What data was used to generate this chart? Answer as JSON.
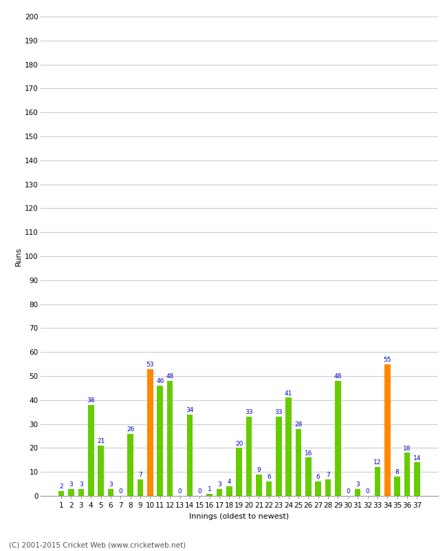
{
  "innings": [
    1,
    2,
    3,
    4,
    5,
    6,
    7,
    8,
    9,
    10,
    11,
    12,
    13,
    14,
    15,
    16,
    17,
    18,
    19,
    20,
    21,
    22,
    23,
    24,
    25,
    26,
    27,
    28,
    29,
    30,
    31,
    32,
    33,
    34,
    35,
    36,
    37
  ],
  "values": [
    2,
    3,
    3,
    38,
    21,
    3,
    0,
    26,
    7,
    53,
    46,
    48,
    0,
    34,
    0,
    1,
    3,
    4,
    20,
    33,
    9,
    6,
    33,
    41,
    28,
    16,
    6,
    7,
    48,
    0,
    3,
    0,
    12,
    55,
    8,
    18,
    14
  ],
  "colors": [
    "#66cc00",
    "#66cc00",
    "#66cc00",
    "#66cc00",
    "#66cc00",
    "#66cc00",
    "#66cc00",
    "#66cc00",
    "#66cc00",
    "#ff8800",
    "#66cc00",
    "#66cc00",
    "#66cc00",
    "#66cc00",
    "#66cc00",
    "#66cc00",
    "#66cc00",
    "#66cc00",
    "#66cc00",
    "#66cc00",
    "#66cc00",
    "#66cc00",
    "#66cc00",
    "#66cc00",
    "#66cc00",
    "#66cc00",
    "#66cc00",
    "#66cc00",
    "#66cc00",
    "#66cc00",
    "#66cc00",
    "#66cc00",
    "#66cc00",
    "#ff8800",
    "#66cc00",
    "#66cc00",
    "#66cc00"
  ],
  "xlabel": "Innings (oldest to newest)",
  "ylabel": "Runs",
  "ylim": [
    0,
    200
  ],
  "yticks": [
    0,
    10,
    20,
    30,
    40,
    50,
    60,
    70,
    80,
    90,
    100,
    110,
    120,
    130,
    140,
    150,
    160,
    170,
    180,
    190,
    200
  ],
  "footer": "(C) 2001-2015 Cricket Web (www.cricketweb.net)",
  "bg_color": "#ffffff",
  "grid_color": "#cccccc",
  "label_color": "#0000cc",
  "label_fontsize": 6.5,
  "axis_fontsize": 7.5,
  "xlabel_fontsize": 8,
  "ylabel_fontsize": 8
}
